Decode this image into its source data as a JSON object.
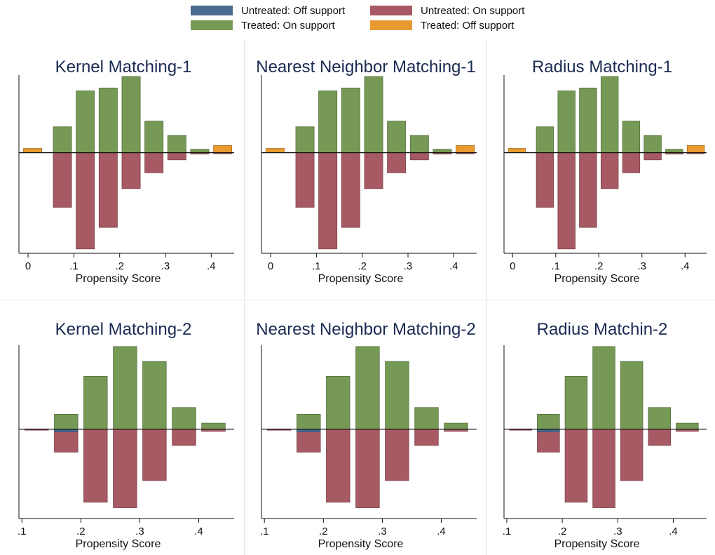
{
  "legend": {
    "items": [
      {
        "label": "Untreated: Off support",
        "color": "#4a6a8e"
      },
      {
        "label": "Untreated: On support",
        "color": "#a85a64"
      },
      {
        "label": "Treated: On support",
        "color": "#769a56"
      },
      {
        "label": "Treated: Off support",
        "color": "#e89a30"
      }
    ]
  },
  "chart_data": [
    {
      "type": "bar",
      "title": "Kernel Matching-1",
      "xlabel": "Propensity Score",
      "xlim": [
        -0.02,
        0.45
      ],
      "xticks": [
        "0",
        ".1",
        ".2",
        ".3",
        ".4"
      ],
      "ylim": [
        -0.35,
        0.27
      ],
      "bins": [
        0.01,
        0.075,
        0.125,
        0.175,
        0.225,
        0.275,
        0.325,
        0.375,
        0.425
      ],
      "bin_width": 0.04,
      "series": [
        {
          "name": "Treated: On support",
          "values": [
            0,
            0.09,
            0.215,
            0.225,
            0.265,
            0.11,
            0.06,
            0.012,
            0
          ]
        },
        {
          "name": "Treated: Off support",
          "values": [
            0.015,
            0,
            0,
            0,
            0,
            0,
            0,
            0,
            0.025
          ]
        },
        {
          "name": "Untreated: On support",
          "values": [
            0,
            -0.19,
            -0.335,
            -0.26,
            -0.125,
            -0.07,
            -0.025,
            -0.005,
            -0.003
          ]
        },
        {
          "name": "Untreated: Off support",
          "values": [
            0,
            0,
            0,
            0,
            0,
            0,
            0,
            0,
            0
          ]
        }
      ]
    },
    {
      "type": "bar",
      "title": "Nearest Neighbor Matching-1",
      "xlabel": "Propensity Score",
      "xlim": [
        -0.02,
        0.45
      ],
      "xticks": [
        "0",
        ".1",
        ".2",
        ".3",
        ".4"
      ],
      "ylim": [
        -0.35,
        0.27
      ],
      "bins": [
        0.01,
        0.075,
        0.125,
        0.175,
        0.225,
        0.275,
        0.325,
        0.375,
        0.425
      ],
      "bin_width": 0.04,
      "series": [
        {
          "name": "Treated: On support",
          "values": [
            0,
            0.09,
            0.215,
            0.225,
            0.265,
            0.11,
            0.06,
            0.012,
            0
          ]
        },
        {
          "name": "Treated: Off support",
          "values": [
            0.015,
            0,
            0,
            0,
            0,
            0,
            0,
            0,
            0.025
          ]
        },
        {
          "name": "Untreated: On support",
          "values": [
            0,
            -0.19,
            -0.335,
            -0.26,
            -0.125,
            -0.07,
            -0.025,
            -0.005,
            -0.003
          ]
        },
        {
          "name": "Untreated: Off support",
          "values": [
            0,
            0,
            0,
            0,
            0,
            0,
            0,
            0,
            0
          ]
        }
      ]
    },
    {
      "type": "bar",
      "title": "Radius Matching-1",
      "xlabel": "Propensity Score",
      "xlim": [
        -0.02,
        0.45
      ],
      "xticks": [
        "0",
        ".1",
        ".2",
        ".3",
        ".4"
      ],
      "ylim": [
        -0.35,
        0.27
      ],
      "bins": [
        0.01,
        0.075,
        0.125,
        0.175,
        0.225,
        0.275,
        0.325,
        0.375,
        0.425
      ],
      "bin_width": 0.04,
      "series": [
        {
          "name": "Treated: On support",
          "values": [
            0,
            0.09,
            0.215,
            0.225,
            0.265,
            0.11,
            0.06,
            0.012,
            0
          ]
        },
        {
          "name": "Treated: Off support",
          "values": [
            0.015,
            0,
            0,
            0,
            0,
            0,
            0,
            0,
            0.025
          ]
        },
        {
          "name": "Untreated: On support",
          "values": [
            0,
            -0.19,
            -0.335,
            -0.26,
            -0.125,
            -0.07,
            -0.025,
            -0.005,
            -0.003
          ]
        },
        {
          "name": "Untreated: Off support",
          "values": [
            0,
            0,
            0,
            0,
            0,
            0,
            0,
            0,
            0
          ]
        }
      ]
    },
    {
      "type": "bar",
      "title": "Kernel Matching-2",
      "xlabel": "Propensity Score",
      "xlim": [
        0.095,
        0.46
      ],
      "xticks": [
        ".1",
        ".2",
        ".3",
        ".4"
      ],
      "ylim": [
        -0.33,
        0.31
      ],
      "bins": [
        0.125,
        0.175,
        0.225,
        0.275,
        0.325,
        0.375,
        0.425
      ],
      "bin_width": 0.04,
      "series": [
        {
          "name": "Treated: On support",
          "values": [
            0.001,
            0.055,
            0.195,
            0.305,
            0.25,
            0.08,
            0.022
          ]
        },
        {
          "name": "Treated: Off support",
          "values": [
            0,
            0,
            0,
            0,
            0,
            0,
            0
          ]
        },
        {
          "name": "Untreated: On support",
          "values": [
            -0.001,
            -0.085,
            -0.27,
            -0.29,
            -0.19,
            -0.06,
            -0.008
          ]
        },
        {
          "name": "Untreated: Off support",
          "values": [
            0,
            -0.01,
            0,
            0,
            0,
            0,
            0
          ]
        }
      ]
    },
    {
      "type": "bar",
      "title": "Nearest Neighbor Matching-2",
      "xlabel": "Propensity Score",
      "xlim": [
        0.095,
        0.46
      ],
      "xticks": [
        ".1",
        ".2",
        ".3",
        ".4"
      ],
      "ylim": [
        -0.33,
        0.31
      ],
      "bins": [
        0.125,
        0.175,
        0.225,
        0.275,
        0.325,
        0.375,
        0.425
      ],
      "bin_width": 0.04,
      "series": [
        {
          "name": "Treated: On support",
          "values": [
            0.001,
            0.055,
            0.195,
            0.305,
            0.25,
            0.08,
            0.022
          ]
        },
        {
          "name": "Treated: Off support",
          "values": [
            0,
            0,
            0,
            0,
            0,
            0,
            0
          ]
        },
        {
          "name": "Untreated: On support",
          "values": [
            -0.001,
            -0.085,
            -0.27,
            -0.29,
            -0.19,
            -0.06,
            -0.008
          ]
        },
        {
          "name": "Untreated: Off support",
          "values": [
            0,
            -0.01,
            0,
            0,
            0,
            0,
            0
          ]
        }
      ]
    },
    {
      "type": "bar",
      "title": "Radius Matchin-2",
      "xlabel": "Propensity Score",
      "xlim": [
        0.095,
        0.46
      ],
      "xticks": [
        ".1",
        ".2",
        ".3",
        ".4"
      ],
      "ylim": [
        -0.33,
        0.31
      ],
      "bins": [
        0.125,
        0.175,
        0.225,
        0.275,
        0.325,
        0.375,
        0.425
      ],
      "bin_width": 0.04,
      "series": [
        {
          "name": "Treated: On support",
          "values": [
            0.001,
            0.055,
            0.195,
            0.305,
            0.25,
            0.08,
            0.022
          ]
        },
        {
          "name": "Treated: Off support",
          "values": [
            0,
            0,
            0,
            0,
            0,
            0,
            0
          ]
        },
        {
          "name": "Untreated: On support",
          "values": [
            -0.001,
            -0.085,
            -0.27,
            -0.29,
            -0.19,
            -0.06,
            -0.008
          ]
        },
        {
          "name": "Untreated: Off support",
          "values": [
            0,
            -0.01,
            0,
            0,
            0,
            0,
            0
          ]
        }
      ]
    }
  ]
}
